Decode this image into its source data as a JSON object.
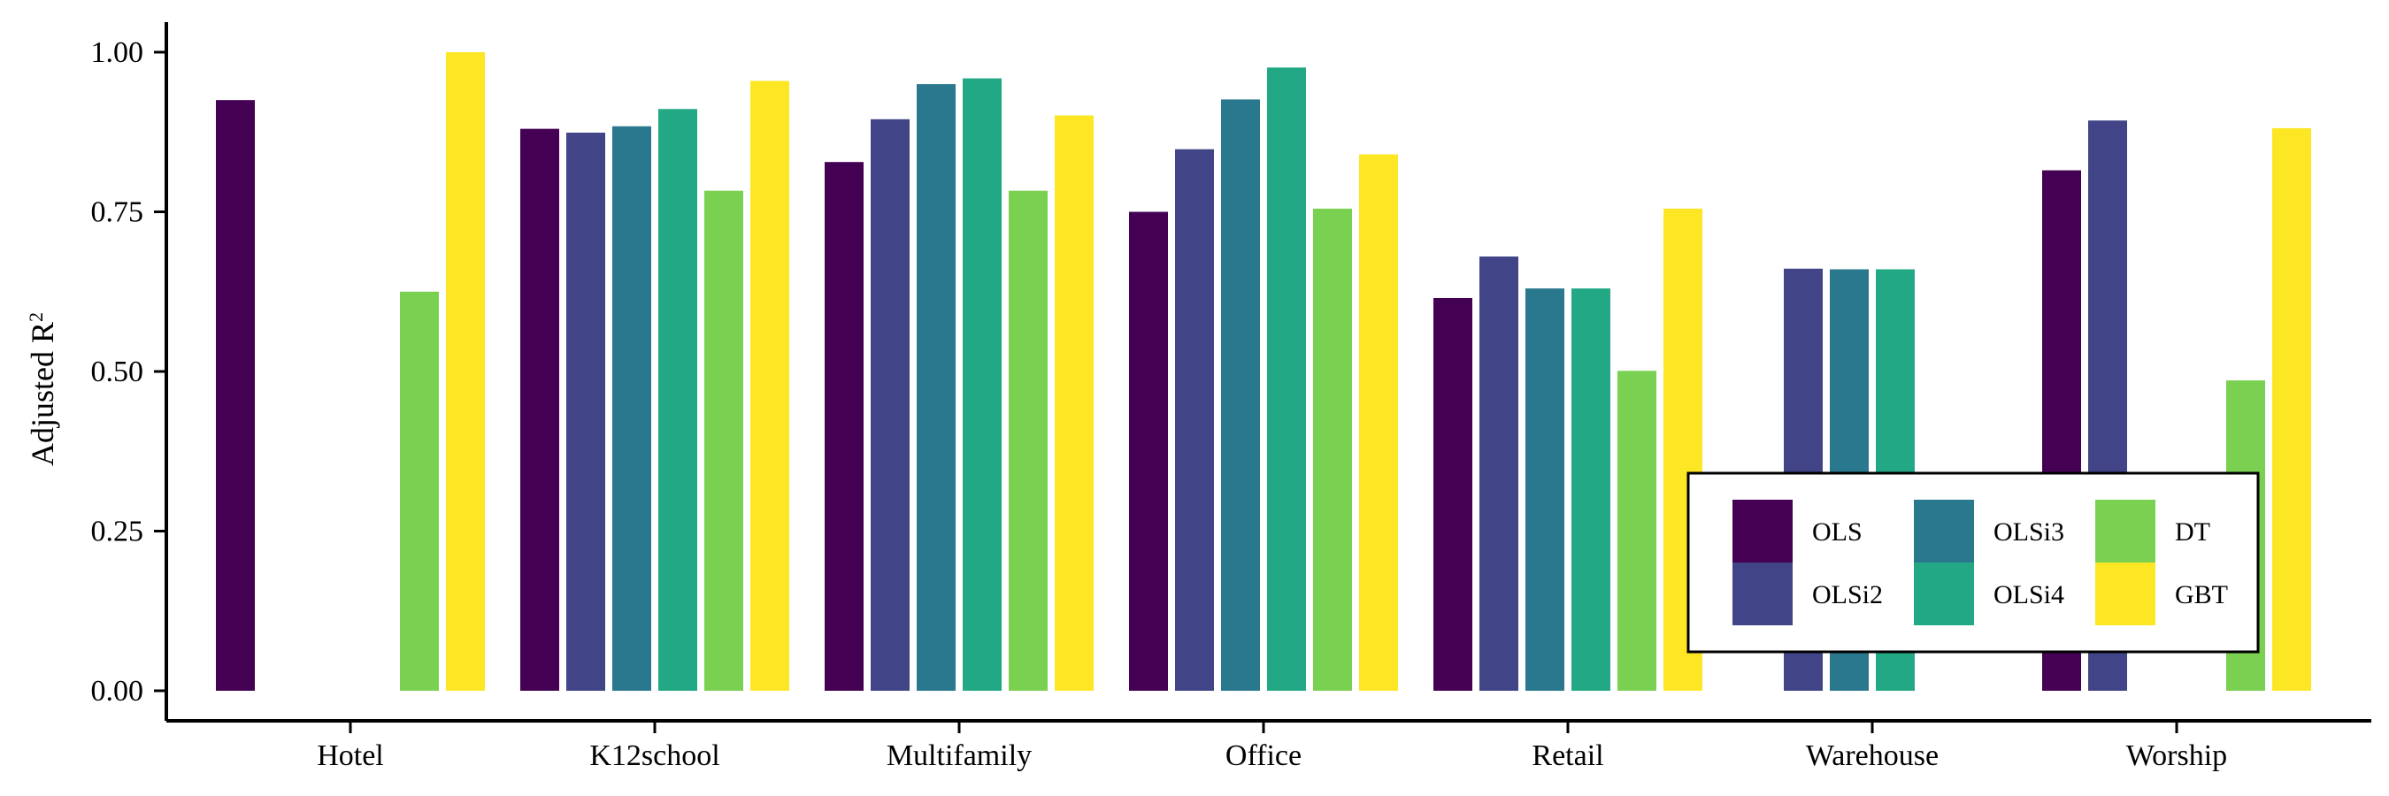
{
  "chart_data": {
    "type": "bar",
    "categories": [
      "Hotel",
      "K12school",
      "Multifamily",
      "Office",
      "Retail",
      "Warehouse",
      "Worship"
    ],
    "series": [
      {
        "name": "OLS",
        "color": "#440154",
        "values": [
          0.925,
          0.88,
          0.828,
          0.75,
          0.615,
          0.0,
          0.815
        ]
      },
      {
        "name": "OLSi2",
        "color": "#414487",
        "values": [
          null,
          0.874,
          0.895,
          0.848,
          0.68,
          0.661,
          0.893
        ]
      },
      {
        "name": "OLSi3",
        "color": "#2A788E",
        "values": [
          null,
          0.884,
          0.95,
          0.926,
          0.63,
          0.66,
          null
        ]
      },
      {
        "name": "OLSi4",
        "color": "#22A884",
        "values": [
          null,
          0.911,
          0.959,
          0.976,
          0.63,
          0.66,
          null
        ]
      },
      {
        "name": "DT",
        "color": "#7AD151",
        "values": [
          0.625,
          0.783,
          0.783,
          0.755,
          0.501,
          0.0,
          0.486
        ]
      },
      {
        "name": "GBT",
        "color": "#FDE725",
        "values": [
          1.0,
          0.955,
          0.901,
          0.84,
          0.755,
          0.0,
          0.881
        ]
      }
    ],
    "title": "",
    "xlabel": "",
    "ylabel": "Adjusted R",
    "ylabel_superscript": "2",
    "ylim": [
      0,
      1.0
    ],
    "yticks": [
      "0.00",
      "0.25",
      "0.50",
      "0.75",
      "1.00"
    ],
    "legend": {
      "position": "bottom-right",
      "columns": 3
    },
    "grid": false
  }
}
